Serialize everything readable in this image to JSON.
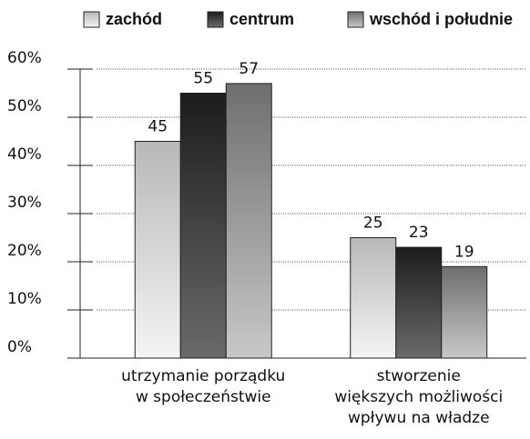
{
  "chart_data": {
    "type": "bar",
    "categories": [
      "utrzymanie porządku\nw społeczeństwie",
      "stworzenie\nwiększych możliwości\nwpływu na władze"
    ],
    "series": [
      {
        "name": "zachód",
        "color": "#b8b8b8",
        "values": [
          45,
          25
        ]
      },
      {
        "name": "centrum",
        "color": "#1c1c1c",
        "values": [
          55,
          23
        ]
      },
      {
        "name": "wschód i południe",
        "color": "#6e6e6e",
        "values": [
          57,
          19
        ]
      }
    ],
    "ylim": [
      0,
      60
    ],
    "yticks": [
      {
        "value": 0,
        "label": "0%"
      },
      {
        "value": 10,
        "label": "10%"
      },
      {
        "value": 20,
        "label": "20%"
      },
      {
        "value": 30,
        "label": "30%"
      },
      {
        "value": 40,
        "label": "40%"
      },
      {
        "value": 50,
        "label": "50%"
      },
      {
        "value": 60,
        "label": "60%"
      }
    ],
    "grid": true,
    "legend": "top"
  }
}
